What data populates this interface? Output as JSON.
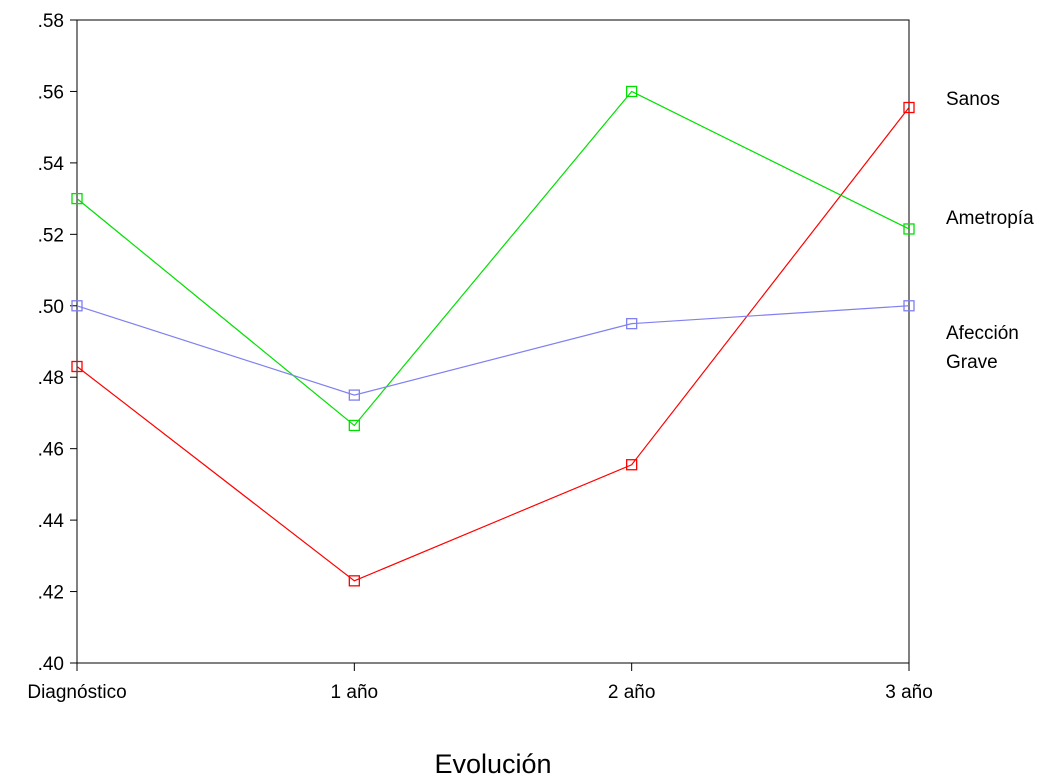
{
  "chart_data": {
    "type": "line",
    "title": "",
    "xlabel": "Evolución",
    "ylabel": "",
    "categories": [
      "Diagnóstico",
      "1 año",
      "2 año",
      "3 año"
    ],
    "ylim": [
      0.4,
      0.58
    ],
    "yticks": [
      {
        "value": 0.4,
        "label": ".40"
      },
      {
        "value": 0.42,
        "label": ".42"
      },
      {
        "value": 0.44,
        "label": ".44"
      },
      {
        "value": 0.46,
        "label": ".46"
      },
      {
        "value": 0.48,
        "label": ".48"
      },
      {
        "value": 0.5,
        "label": ".50"
      },
      {
        "value": 0.52,
        "label": ".52"
      },
      {
        "value": 0.54,
        "label": ".54"
      },
      {
        "value": 0.56,
        "label": ".56"
      },
      {
        "value": 0.58,
        "label": ".58"
      }
    ],
    "grid": false,
    "legend_placement": "right",
    "marker": "square",
    "series": [
      {
        "name": "Sanos",
        "color": "#ff0000",
        "values": [
          0.483,
          0.423,
          0.4555,
          0.5555
        ]
      },
      {
        "name": "Ametropía",
        "color": "#00e000",
        "values": [
          0.53,
          0.4665,
          0.56,
          0.5215
        ]
      },
      {
        "name": "Afección Grave",
        "color": "#8080f0",
        "values": [
          0.5,
          0.475,
          0.495,
          0.5
        ]
      }
    ]
  }
}
